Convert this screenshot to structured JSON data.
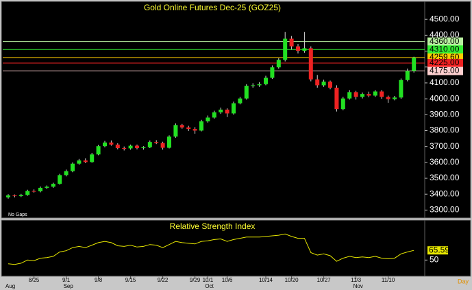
{
  "chart_data": [
    {
      "type": "candlestick",
      "title": "Gold Online Futures Dec-25 (GOZ25)",
      "note": "No Gaps",
      "xlabel": "Day",
      "categories": [
        null,
        null,
        null,
        null,
        "8/25",
        null,
        null,
        null,
        null,
        "9/1",
        null,
        null,
        null,
        null,
        "9/8",
        null,
        null,
        null,
        null,
        "9/15",
        null,
        null,
        null,
        null,
        "9/22",
        null,
        null,
        null,
        null,
        "9/29",
        null,
        "10/1",
        null,
        null,
        "10/6",
        null,
        null,
        null,
        null,
        null,
        "10/14",
        null,
        null,
        null,
        "10/20",
        null,
        null,
        null,
        null,
        "10/27",
        null,
        null,
        null,
        null,
        "11/3",
        null,
        null,
        null,
        null,
        "11/10",
        null,
        null,
        null,
        null
      ],
      "months": [
        "Aug",
        null,
        null,
        null,
        null,
        null,
        null,
        null,
        null,
        "Sep",
        null,
        null,
        null,
        null,
        null,
        null,
        null,
        null,
        null,
        null,
        null,
        null,
        null,
        null,
        null,
        null,
        null,
        null,
        null,
        null,
        null,
        "Oct",
        null,
        null,
        null,
        null,
        null,
        null,
        null,
        null,
        null,
        null,
        null,
        null,
        null,
        null,
        null,
        null,
        null,
        null,
        null,
        null,
        null,
        null,
        "Nov",
        null,
        null,
        null,
        null,
        null,
        null,
        null,
        null,
        null
      ],
      "open": [
        3380,
        3392,
        3388,
        3395,
        3420,
        3418,
        3440,
        3447,
        3465,
        3520,
        3545,
        3592,
        3612,
        3602,
        3650,
        3702,
        3725,
        3712,
        3690,
        3688,
        3705,
        3690,
        3695,
        3728,
        3722,
        3692,
        3762,
        3835,
        3820,
        3810,
        3800,
        3858,
        3882,
        3915,
        3932,
        3908,
        3972,
        4002,
        4082,
        4085,
        4092,
        4132,
        4198,
        4245,
        4378,
        4330,
        4302,
        4318,
        4122,
        4085,
        4108,
        4070,
        3935,
        4002,
        4042,
        4012,
        4030,
        4020,
        4046,
        4012,
        3998,
        4008,
        4118,
        4175
      ],
      "high": [
        3400,
        3398,
        3402,
        3428,
        3430,
        3448,
        3455,
        3472,
        3528,
        3555,
        3600,
        3622,
        3625,
        3660,
        3710,
        3735,
        3738,
        3720,
        3700,
        3712,
        3712,
        3702,
        3738,
        3740,
        3730,
        3770,
        3845,
        3842,
        3830,
        3822,
        3868,
        3895,
        3925,
        3945,
        3940,
        3982,
        4012,
        4092,
        4098,
        4105,
        4145,
        4210,
        4255,
        4420,
        4395,
        4345,
        4420,
        4330,
        4150,
        4120,
        4115,
        4085,
        4012,
        4055,
        4050,
        4040,
        4045,
        4055,
        4055,
        4020,
        4018,
        4128,
        4190,
        4265
      ],
      "low": [
        3372,
        3380,
        3382,
        3390,
        3410,
        3412,
        3432,
        3440,
        3460,
        3512,
        3538,
        3585,
        3595,
        3598,
        3645,
        3695,
        3705,
        3682,
        3675,
        3680,
        3682,
        3680,
        3690,
        3715,
        3680,
        3688,
        3755,
        3812,
        3798,
        3780,
        3795,
        3850,
        3875,
        3905,
        3885,
        3900,
        3965,
        3995,
        4070,
        4075,
        4085,
        4125,
        4190,
        4235,
        4310,
        4285,
        4290,
        4110,
        4070,
        4075,
        4060,
        3920,
        3928,
        3995,
        3995,
        4002,
        4010,
        4012,
        4000,
        3975,
        3990,
        4000,
        4110,
        4165
      ],
      "close": [
        3392,
        3388,
        3395,
        3420,
        3418,
        3440,
        3447,
        3465,
        3520,
        3545,
        3592,
        3612,
        3602,
        3650,
        3702,
        3725,
        3712,
        3690,
        3688,
        3705,
        3690,
        3695,
        3728,
        3722,
        3692,
        3762,
        3835,
        3820,
        3810,
        3800,
        3858,
        3882,
        3915,
        3932,
        3908,
        3972,
        4002,
        4082,
        4085,
        4092,
        4132,
        4198,
        4245,
        4378,
        4330,
        4302,
        4318,
        4122,
        4085,
        4108,
        4070,
        3935,
        4002,
        4042,
        4012,
        4030,
        4020,
        4046,
        4012,
        3998,
        4008,
        4118,
        4175,
        4259.6
      ],
      "up_color": "#22e022",
      "down_color": "#ee2222",
      "ylim": [
        3250,
        4600
      ],
      "yticks": [
        {
          "value": 3300,
          "label": "3300.00"
        },
        {
          "value": 3400,
          "label": "3400.00"
        },
        {
          "value": 3500,
          "label": "3500.00"
        },
        {
          "value": 3600,
          "label": "3600.00"
        },
        {
          "value": 3700,
          "label": "3700.00"
        },
        {
          "value": 3800,
          "label": "3800.00"
        },
        {
          "value": 3900,
          "label": "3900.00"
        },
        {
          "value": 4000,
          "label": "4000.00"
        },
        {
          "value": 4100,
          "label": "4100.00"
        },
        {
          "value": 4200,
          "label": "4200.00"
        },
        {
          "value": 4300,
          "label": "4300.00"
        },
        {
          "value": 4400,
          "label": "4400.00"
        },
        {
          "value": 4500,
          "label": "4500.00"
        }
      ],
      "levels": [
        {
          "value": 4360,
          "label": "4360.00",
          "color": "#b8f0a0"
        },
        {
          "value": 4310,
          "label": "4310.00",
          "color": "#33ee33"
        },
        {
          "value": 4259.6,
          "label": "4259.60",
          "color": "#ffcc00"
        },
        {
          "value": 4225,
          "label": "4225.00",
          "color": "#ee2222"
        },
        {
          "value": 4175,
          "label": "4175.00",
          "color": "#ffd0d0"
        }
      ]
    },
    {
      "type": "line",
      "title": "Relative Strength Index",
      "color": "#e8e800",
      "values": [
        44,
        43,
        45,
        50,
        49,
        53,
        54,
        56,
        63,
        65,
        70,
        72,
        70,
        74,
        78,
        80,
        78,
        73,
        72,
        74,
        71,
        72,
        75,
        74,
        70,
        75,
        80,
        78,
        77,
        76,
        80,
        81,
        83,
        84,
        80,
        83,
        85,
        87,
        87,
        87,
        88,
        89,
        90,
        92,
        88,
        85,
        85,
        62,
        58,
        60,
        57,
        48,
        53,
        56,
        54,
        55,
        54,
        56,
        53,
        52,
        53,
        60,
        63,
        65.59
      ],
      "ylim": [
        25,
        100
      ],
      "yticks": [
        50
      ]
    }
  ]
}
